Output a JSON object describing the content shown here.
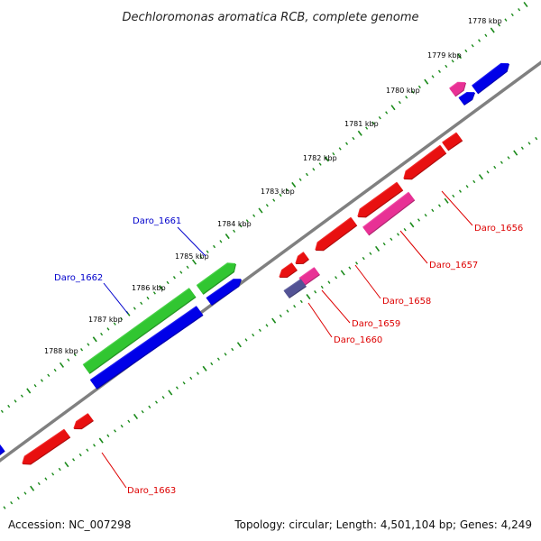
{
  "title": "Dechloromonas aromatica RCB, complete genome",
  "footer": {
    "accession": "Accession: NC_007298",
    "summary": "Topology: circular; Length: 4,501,104 bp; Genes: 4,249"
  },
  "ticks": [
    "1778 kbp",
    "1779 kbp",
    "1780 kbp",
    "1781 kbp",
    "1782 kbp",
    "1783 kbp",
    "1784 kbp",
    "1785 kbp",
    "1786 kbp",
    "1787 kbp",
    "1788 kbp"
  ],
  "labels": {
    "Daro_1661": "Daro_1661",
    "Daro_1662": "Daro_1662",
    "Daro_1656": "Daro_1656",
    "Daro_1657": "Daro_1657",
    "Daro_1658": "Daro_1658",
    "Daro_1659": "Daro_1659",
    "Daro_1660": "Daro_1660",
    "Daro_1663": "Daro_1663"
  },
  "colors": {
    "backbone": "#808080",
    "tick": "#1a8a1a",
    "forward_label": "#0000cc",
    "reverse_label": "#dd0000",
    "green": "#33cc33",
    "blue": "#0000ee",
    "red": "#ee1111",
    "pink": "#ee3399",
    "purple": "#555599"
  }
}
